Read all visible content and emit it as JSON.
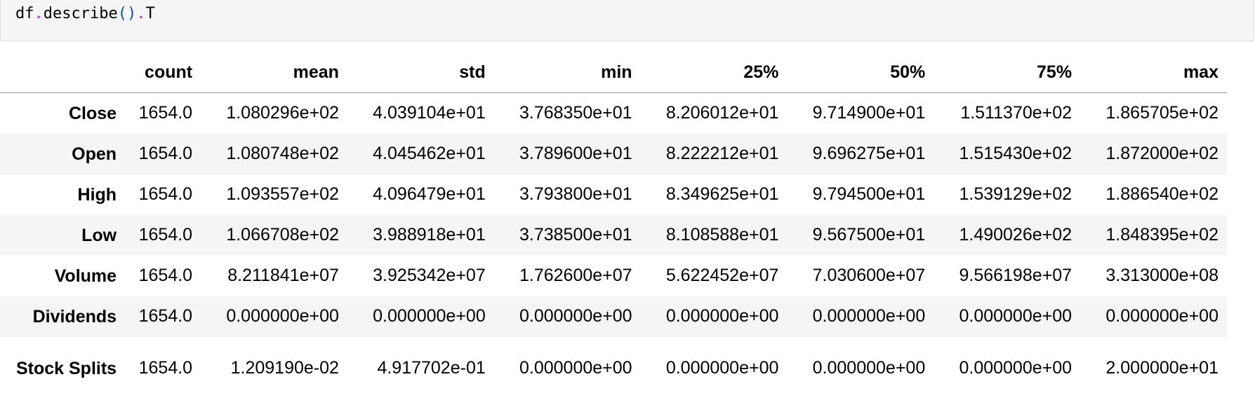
{
  "cell": {
    "code": {
      "object": "df",
      "dot1": ".",
      "method": "describe",
      "parens": "()",
      "dot2": ".",
      "attr": "T"
    }
  },
  "table": {
    "columns": [
      "count",
      "mean",
      "std",
      "min",
      "25%",
      "50%",
      "75%",
      "max"
    ],
    "rows": [
      {
        "index": "Close",
        "values": [
          "1654.0",
          "1.080296e+02",
          "4.039104e+01",
          "3.768350e+01",
          "8.206012e+01",
          "9.714900e+01",
          "1.511370e+02",
          "1.865705e+02"
        ]
      },
      {
        "index": "Open",
        "values": [
          "1654.0",
          "1.080748e+02",
          "4.045462e+01",
          "3.789600e+01",
          "8.222212e+01",
          "9.696275e+01",
          "1.515430e+02",
          "1.872000e+02"
        ]
      },
      {
        "index": "High",
        "values": [
          "1654.0",
          "1.093557e+02",
          "4.096479e+01",
          "3.793800e+01",
          "8.349625e+01",
          "9.794500e+01",
          "1.539129e+02",
          "1.886540e+02"
        ]
      },
      {
        "index": "Low",
        "values": [
          "1654.0",
          "1.066708e+02",
          "3.988918e+01",
          "3.738500e+01",
          "8.108588e+01",
          "9.567500e+01",
          "1.490026e+02",
          "1.848395e+02"
        ]
      },
      {
        "index": "Volume",
        "values": [
          "1654.0",
          "8.211841e+07",
          "3.925342e+07",
          "1.762600e+07",
          "5.622452e+07",
          "7.030600e+07",
          "9.566198e+07",
          "3.313000e+08"
        ]
      },
      {
        "index": "Dividends",
        "values": [
          "1654.0",
          "0.000000e+00",
          "0.000000e+00",
          "0.000000e+00",
          "0.000000e+00",
          "0.000000e+00",
          "0.000000e+00",
          "0.000000e+00"
        ]
      },
      {
        "index": "Stock Splits",
        "values": [
          "1654.0",
          "1.209190e-02",
          "4.917702e-01",
          "0.000000e+00",
          "0.000000e+00",
          "0.000000e+00",
          "0.000000e+00",
          "2.000000e+01"
        ]
      }
    ]
  }
}
